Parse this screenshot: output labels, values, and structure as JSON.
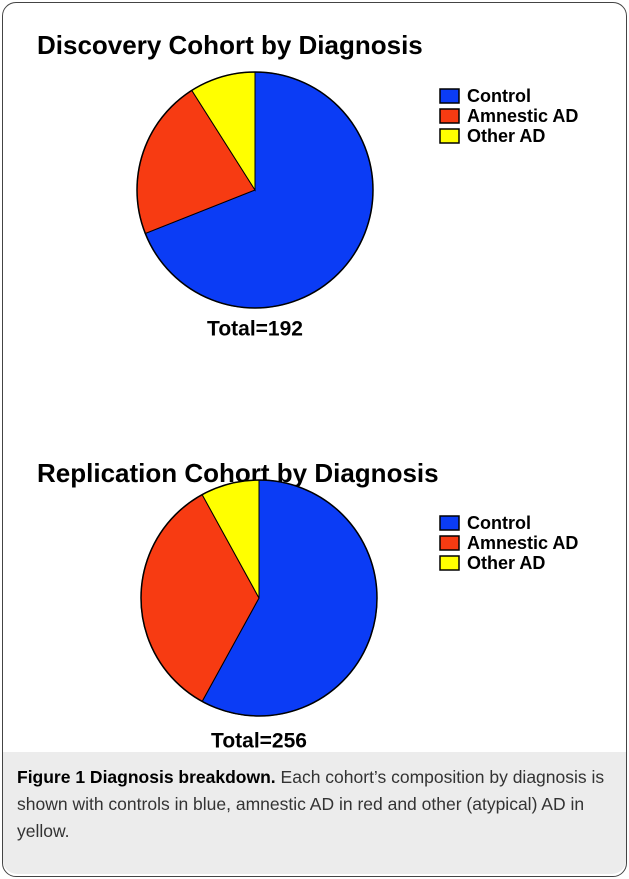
{
  "chart_data": [
    {
      "type": "pie",
      "title": "Discovery Cohort by Diagnosis",
      "total_label": "Total=192",
      "categories": [
        "Control",
        "Amnestic AD",
        "Other AD"
      ],
      "values": [
        69,
        22,
        9
      ],
      "colors": [
        "#0b3cf5",
        "#f73b12",
        "#ffff00"
      ]
    },
    {
      "type": "pie",
      "title": "Replication Cohort by Diagnosis",
      "total_label": "Total=256",
      "categories": [
        "Control",
        "Amnestic AD",
        "Other AD"
      ],
      "values": [
        58,
        34,
        8
      ],
      "colors": [
        "#0b3cf5",
        "#f73b12",
        "#ffff00"
      ]
    }
  ],
  "caption": {
    "label": "Figure 1 Diagnosis breakdown.",
    "text": "Each cohort’s composition by diagnosis is shown with controls in blue, amnestic AD in red and other (atypical) AD in yellow."
  }
}
